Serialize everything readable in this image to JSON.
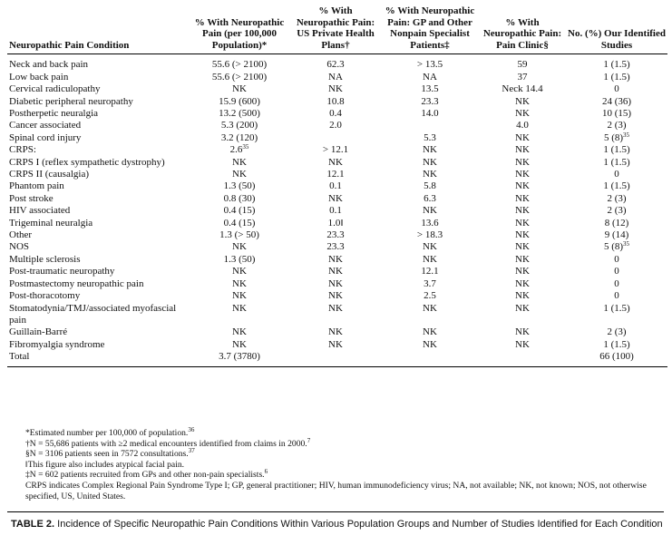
{
  "table": {
    "headers": [
      "Neuropathic Pain Condition",
      "% With Neuropathic Pain (per 100,000 Population)*",
      "% With Neuropathic Pain: US Private Health Plans†",
      "% With Neuropathic Pain: GP and Other Nonpain Specialist Patients‡",
      "% With Neuropathic Pain: Pain Clinic§",
      "No. (%) Our Identified Studies"
    ],
    "rows": [
      [
        "Neck and back pain",
        "55.6 (> 2100)",
        "62.3",
        "> 13.5",
        "59",
        "1 (1.5)"
      ],
      [
        "Low back pain",
        "55.6 (> 2100)",
        "NA",
        "NA",
        "37",
        "1 (1.5)"
      ],
      [
        "Cervical radiculopathy",
        "NK",
        "NK",
        "13.5",
        "Neck 14.4",
        "0"
      ],
      [
        "Diabetic peripheral neuropathy",
        "15.9 (600)",
        "10.8",
        "23.3",
        "NK",
        "24 (36)"
      ],
      [
        "Postherpetic neuralgia",
        "13.2 (500)",
        "0.4",
        "14.0",
        "NK",
        "10 (15)"
      ],
      [
        "Cancer associated",
        "5.3 (200)",
        "2.0",
        null,
        "4.0",
        "2 (3)"
      ],
      [
        "Spinal cord injury",
        "3.2 (120)",
        null,
        "5.3",
        "NK",
        {
          "text": "5 (8)",
          "sup": "35"
        }
      ],
      [
        "CRPS:",
        {
          "text": "2.6",
          "sup": "35"
        },
        "> 12.1",
        "NK",
        "NK",
        "1 (1.5)"
      ],
      [
        "CRPS I (reflex sympathetic dystrophy)",
        "NK",
        "NK",
        "NK",
        "NK",
        "1 (1.5)"
      ],
      [
        "CRPS II (causalgia)",
        "NK",
        "12.1",
        "NK",
        "NK",
        "0"
      ],
      [
        "Phantom pain",
        "1.3 (50)",
        "0.1",
        "5.8",
        "NK",
        "1 (1.5)"
      ],
      [
        "Post stroke",
        "0.8 (30)",
        "NK",
        "6.3",
        "NK",
        "2 (3)"
      ],
      [
        "HIV associated",
        "0.4 (15)",
        "0.1",
        "NK",
        "NK",
        "2 (3)"
      ],
      [
        "Trigeminal neuralgia",
        "0.4 (15)",
        "1.0‖",
        "13.6",
        "NK",
        "8 (12)"
      ],
      [
        "Other",
        "1.3 (> 50)",
        "23.3",
        "> 18.3",
        "NK",
        "9 (14)"
      ],
      [
        "NOS",
        "NK",
        "23.3",
        "NK",
        "NK",
        {
          "text": "5 (8)",
          "sup": "35"
        }
      ],
      [
        "Multiple sclerosis",
        "1.3 (50)",
        "NK",
        "NK",
        "NK",
        "0"
      ],
      [
        "Post-traumatic neuropathy",
        "NK",
        "NK",
        "12.1",
        "NK",
        "0"
      ],
      [
        "Postmastectomy neuropathic pain",
        "NK",
        "NK",
        "3.7",
        "NK",
        "0"
      ],
      [
        "Post-thoracotomy",
        "NK",
        "NK",
        "2.5",
        "NK",
        "0"
      ],
      [
        "Stomatodynia/TMJ/associated myofascial pain",
        "NK",
        "NK",
        "NK",
        "NK",
        "1 (1.5)"
      ],
      [
        "Guillain-Barré",
        "NK",
        "NK",
        "NK",
        "NK",
        "2 (3)"
      ],
      [
        "Fibromyalgia syndrome",
        "NK",
        "NK",
        "NK",
        "NK",
        "1 (1.5)"
      ],
      [
        "Total",
        "3.7 (3780)",
        null,
        null,
        null,
        "66 (100)"
      ]
    ]
  },
  "footnotes": [
    {
      "text": "*Estimated number per 100,000 of population.",
      "sup": "36"
    },
    {
      "text": "†N = 55,686 patients with ≥2 medical encounters identified from claims in 2000.",
      "sup": "7"
    },
    {
      "text": "§N = 3106 patients seen in 7572 consultations.",
      "sup": "37"
    },
    {
      "text": "‖This figure also includes atypical facial pain."
    },
    {
      "text": "‡N = 602 patients recruited from GPs and other non-pain specialists.",
      "sup": "6"
    },
    {
      "text": "CRPS indicates Complex Regional Pain Syndrome Type I; GP, general practitioner; HIV, human immunodeficiency virus; NA, not available; NK, not known; NOS, not otherwise specified, US, United States."
    }
  ],
  "caption": {
    "label": "TABLE 2.",
    "text": "Incidence of Specific Neuropathic Pain Conditions Within Various Population Groups and Number of Studies Identified for Each Condition"
  }
}
